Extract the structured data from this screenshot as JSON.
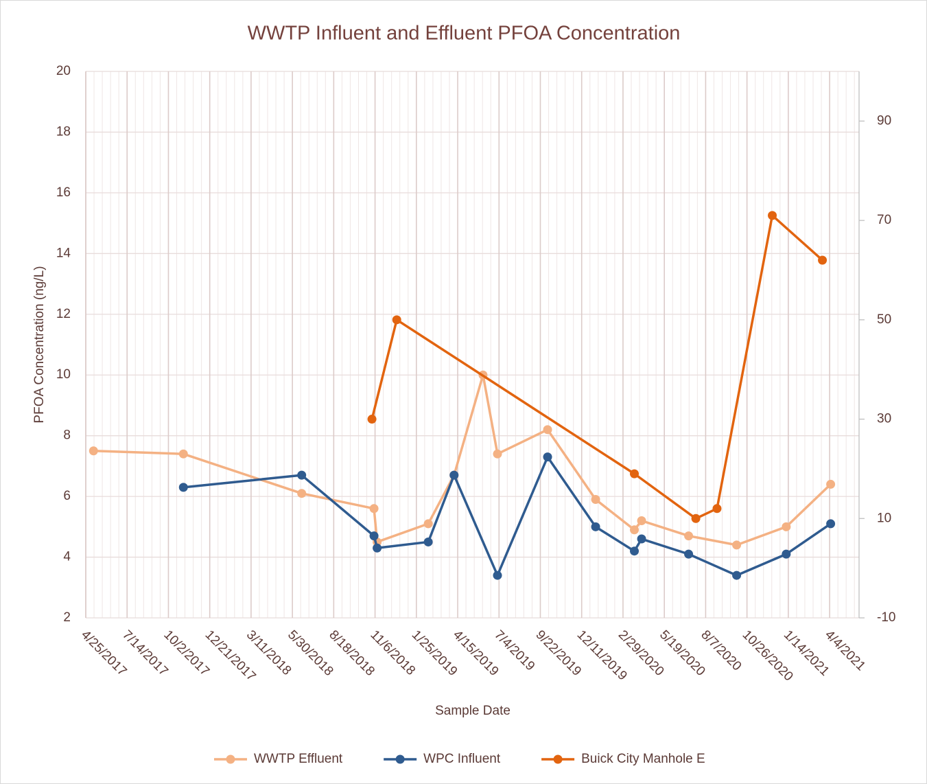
{
  "chart_data": {
    "type": "line",
    "title": "WWTP Influent and Effluent PFOA Concentration",
    "x_label": "Sample Date",
    "y_label": "PFOA Concentration (ng/L)",
    "xlim": [
      "4/25/2017",
      "5/31/2021"
    ],
    "xticks": [
      "4/25/2017",
      "7/14/2017",
      "10/2/2017",
      "12/21/2017",
      "3/11/2018",
      "5/30/2018",
      "8/18/2018",
      "11/6/2018",
      "1/25/2019",
      "4/15/2019",
      "7/4/2019",
      "9/22/2019",
      "12/11/2019",
      "2/29/2020",
      "5/19/2020",
      "8/7/2020",
      "10/26/2020",
      "1/14/2021",
      "4/4/2021"
    ],
    "ylim": [
      2,
      20
    ],
    "yticks": [
      2,
      4,
      6,
      8,
      10,
      12,
      14,
      16,
      18,
      20
    ],
    "y2lim": [
      -10,
      100
    ],
    "y2ticks": [
      -10,
      10,
      30,
      50,
      70,
      90
    ],
    "grid": true,
    "legend": "bottom",
    "series": [
      {
        "name": "WWTP Effluent",
        "color": "#f4b183",
        "x": [
          "5/10/2017",
          "10/31/2017",
          "6/17/2018",
          "11/4/2018",
          "11/10/2018",
          "2/17/2019",
          "4/8/2019",
          "6/3/2019",
          "7/1/2019",
          "10/6/2019",
          "1/7/2020",
          "3/22/2020",
          "4/5/2020",
          "7/5/2020",
          "10/6/2020",
          "1/10/2021",
          "4/6/2021"
        ],
        "values": [
          7.5,
          7.4,
          6.1,
          5.6,
          4.5,
          5.1,
          6.7,
          10.0,
          7.4,
          8.2,
          5.9,
          4.9,
          5.2,
          4.7,
          4.4,
          5.0,
          6.4
        ]
      },
      {
        "name": "WPC Influent",
        "color": "#2f5b8f",
        "x": [
          "10/31/2017",
          "6/17/2018",
          "11/4/2018",
          "11/10/2018",
          "2/17/2019",
          "4/8/2019",
          "7/1/2019",
          "10/6/2019",
          "1/7/2020",
          "3/22/2020",
          "4/5/2020",
          "7/5/2020",
          "10/6/2020",
          "1/10/2021",
          "4/6/2021"
        ],
        "values": [
          6.3,
          6.7,
          4.7,
          4.3,
          4.5,
          6.7,
          3.4,
          7.3,
          5.0,
          4.2,
          4.6,
          4.1,
          3.4,
          4.1,
          5.1
        ]
      },
      {
        "name": "Buick City Manhole E",
        "color": "#e2640f",
        "axis": "y2",
        "x": [
          "10/31/2018",
          "12/18/2018",
          "3/22/2020",
          "7/19/2020",
          "8/29/2020",
          "12/14/2020",
          "3/21/2021"
        ],
        "values": [
          30,
          50,
          19,
          10,
          12,
          71,
          62
        ]
      }
    ]
  }
}
